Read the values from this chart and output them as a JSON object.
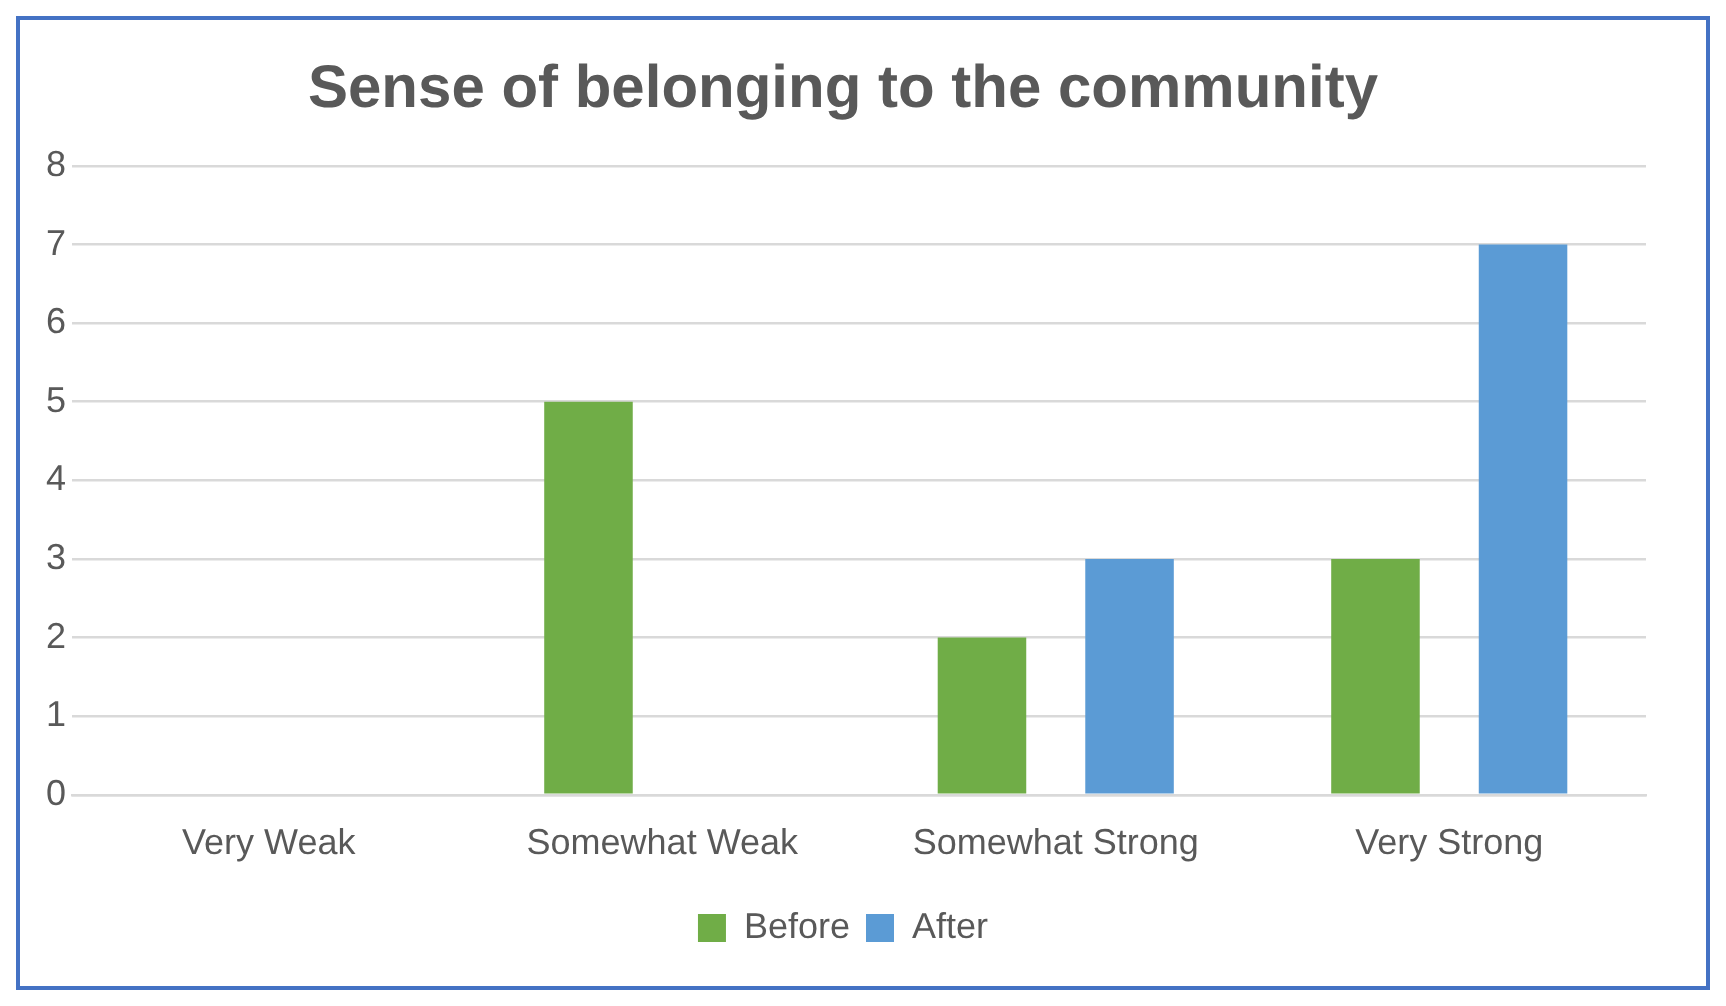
{
  "chart_data": {
    "type": "bar",
    "title": "Sense of belonging to the community",
    "categories": [
      "Very Weak",
      "Somewhat Weak",
      "Somewhat Strong",
      "Very Strong"
    ],
    "series": [
      {
        "name": "Before",
        "color": "#70ad47",
        "values": [
          0,
          5,
          2,
          3
        ]
      },
      {
        "name": "After",
        "color": "#5b9bd5",
        "values": [
          0,
          0,
          3,
          7
        ]
      }
    ],
    "ylim": [
      0,
      8
    ],
    "yticks": [
      0,
      1,
      2,
      3,
      4,
      5,
      6,
      7,
      8
    ],
    "grid": "y",
    "legend": "bottom"
  }
}
